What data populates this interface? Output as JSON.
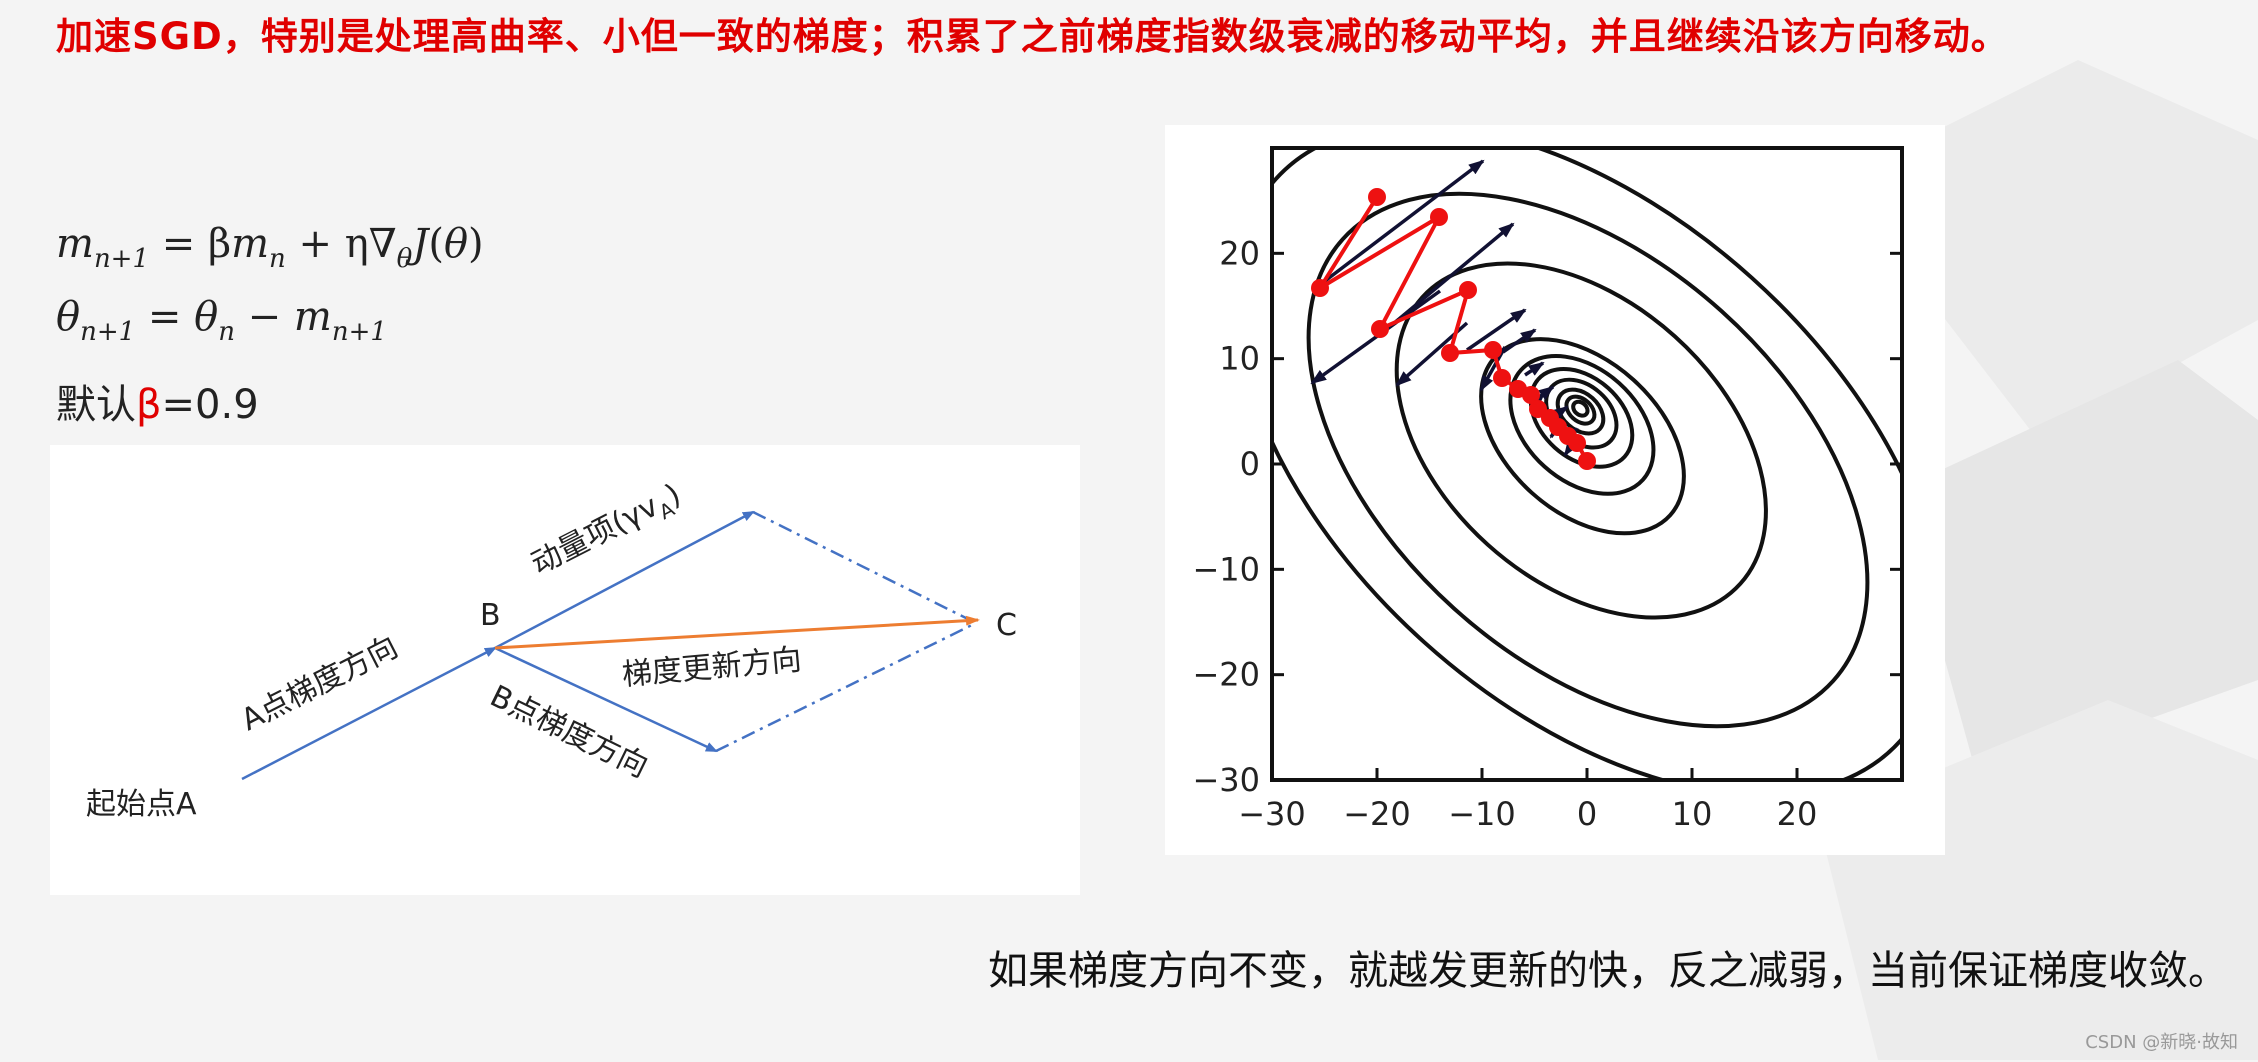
{
  "headline": "加速SGD，特别是处理高曲率、小但一致的梯度；积累了之前梯度指数级衰减的移动平均，并且继续沿该方向移动。",
  "default_label": "默认",
  "default_symbol": "β",
  "default_value": "=0.9",
  "vector_diagram": {
    "start_label": "起始点A",
    "point_b": "B",
    "point_c": "C",
    "a_gradient": "A点梯度方向",
    "b_gradient": "B点梯度方向",
    "momentum": "动量项(γv",
    "momentum_sub": "A",
    "momentum_close": ")",
    "update": "梯度更新方向"
  },
  "contour_plot": {
    "x_ticks": [
      "−30",
      "−20",
      "−10",
      "0",
      "10",
      "20"
    ],
    "y_ticks": [
      "20",
      "10",
      "0",
      "−10",
      "−20",
      "−30"
    ],
    "xlim": [
      -30,
      30
    ],
    "ylim": [
      -30,
      30
    ]
  },
  "footer_note": "如果梯度方向不变，就越发更新的快，反之减弱，当前保证梯度收敛。",
  "watermark": "CSDN @新晓·故知",
  "colors": {
    "accent": "#e00000",
    "vector_blue": "#4472c4",
    "vector_orange": "#ed7d31",
    "path_red": "#ee1111"
  }
}
